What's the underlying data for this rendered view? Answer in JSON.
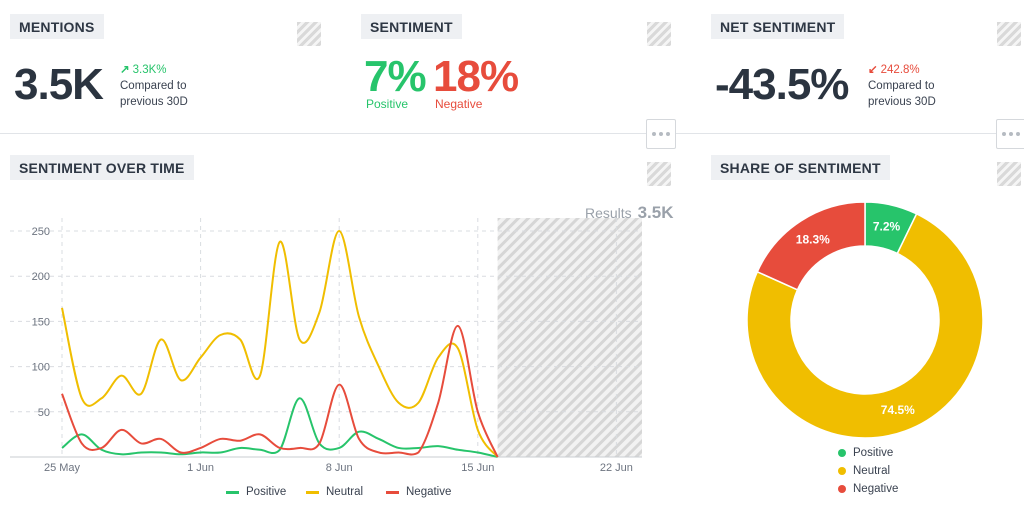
{
  "mentions": {
    "title": "MENTIONS",
    "value": "3.5K",
    "delta": "3.3K%",
    "delta_arrow": "↗",
    "compare_line1": "Compared to",
    "compare_line2": "previous 30D",
    "delta_color": "#27c46b"
  },
  "sentiment": {
    "title": "SENTIMENT",
    "positive_value": "7%",
    "positive_label": "Positive",
    "negative_value": "18%",
    "negative_label": "Negative"
  },
  "net_sentiment": {
    "title": "NET SENTIMENT",
    "value": "-43.5%",
    "delta": "242.8%",
    "delta_arrow": "↙",
    "compare_line1": "Compared to",
    "compare_line2": "previous 30D",
    "delta_color": "#e74c3c"
  },
  "over_time": {
    "title": "SENTIMENT OVER TIME",
    "results_label": "Results",
    "results_value": "3.5K"
  },
  "share": {
    "title": "SHARE OF SENTIMENT"
  },
  "colors": {
    "positive": "#27c46b",
    "neutral": "#f0be00",
    "negative": "#e74c3c"
  },
  "chart_data": [
    {
      "type": "line",
      "title": "SENTIMENT OVER TIME",
      "x_ticks": [
        "25 May",
        "1 Jun",
        "8 Jun",
        "15 Jun",
        "22 Jun"
      ],
      "y_ticks": [
        50,
        100,
        150,
        200,
        250
      ],
      "ylim": [
        0,
        260
      ],
      "x": [
        "25 May",
        "26 May",
        "27 May",
        "28 May",
        "29 May",
        "30 May",
        "31 May",
        "1 Jun",
        "2 Jun",
        "3 Jun",
        "4 Jun",
        "5 Jun",
        "6 Jun",
        "7 Jun",
        "8 Jun",
        "9 Jun",
        "10 Jun",
        "11 Jun",
        "12 Jun",
        "13 Jun",
        "14 Jun",
        "15 Jun",
        "16 Jun"
      ],
      "series": [
        {
          "name": "Positive",
          "values": [
            10,
            25,
            8,
            3,
            5,
            5,
            3,
            5,
            5,
            10,
            8,
            8,
            65,
            15,
            10,
            28,
            20,
            10,
            10,
            12,
            8,
            5,
            0
          ]
        },
        {
          "name": "Neutral",
          "values": [
            165,
            65,
            65,
            90,
            70,
            130,
            85,
            110,
            135,
            130,
            90,
            238,
            130,
            160,
            250,
            155,
            100,
            60,
            60,
            110,
            120,
            30,
            0
          ]
        },
        {
          "name": "Negative",
          "values": [
            70,
            15,
            10,
            30,
            15,
            20,
            5,
            10,
            20,
            18,
            25,
            10,
            10,
            15,
            80,
            20,
            5,
            5,
            5,
            60,
            145,
            50,
            0
          ]
        }
      ],
      "shaded_future_region": [
        "16 Jun",
        "22 Jun"
      ],
      "legend": [
        "Positive",
        "Neutral",
        "Negative"
      ],
      "legend_position": "bottom",
      "grid": true
    },
    {
      "type": "pie",
      "title": "SHARE OF SENTIMENT",
      "donut": true,
      "labels": [
        "Positive",
        "Neutral",
        "Negative"
      ],
      "values": [
        7.2,
        74.5,
        18.3
      ],
      "value_labels": [
        "7.2%",
        "74.5%",
        "18.3%"
      ],
      "legend_position": "bottom"
    }
  ]
}
